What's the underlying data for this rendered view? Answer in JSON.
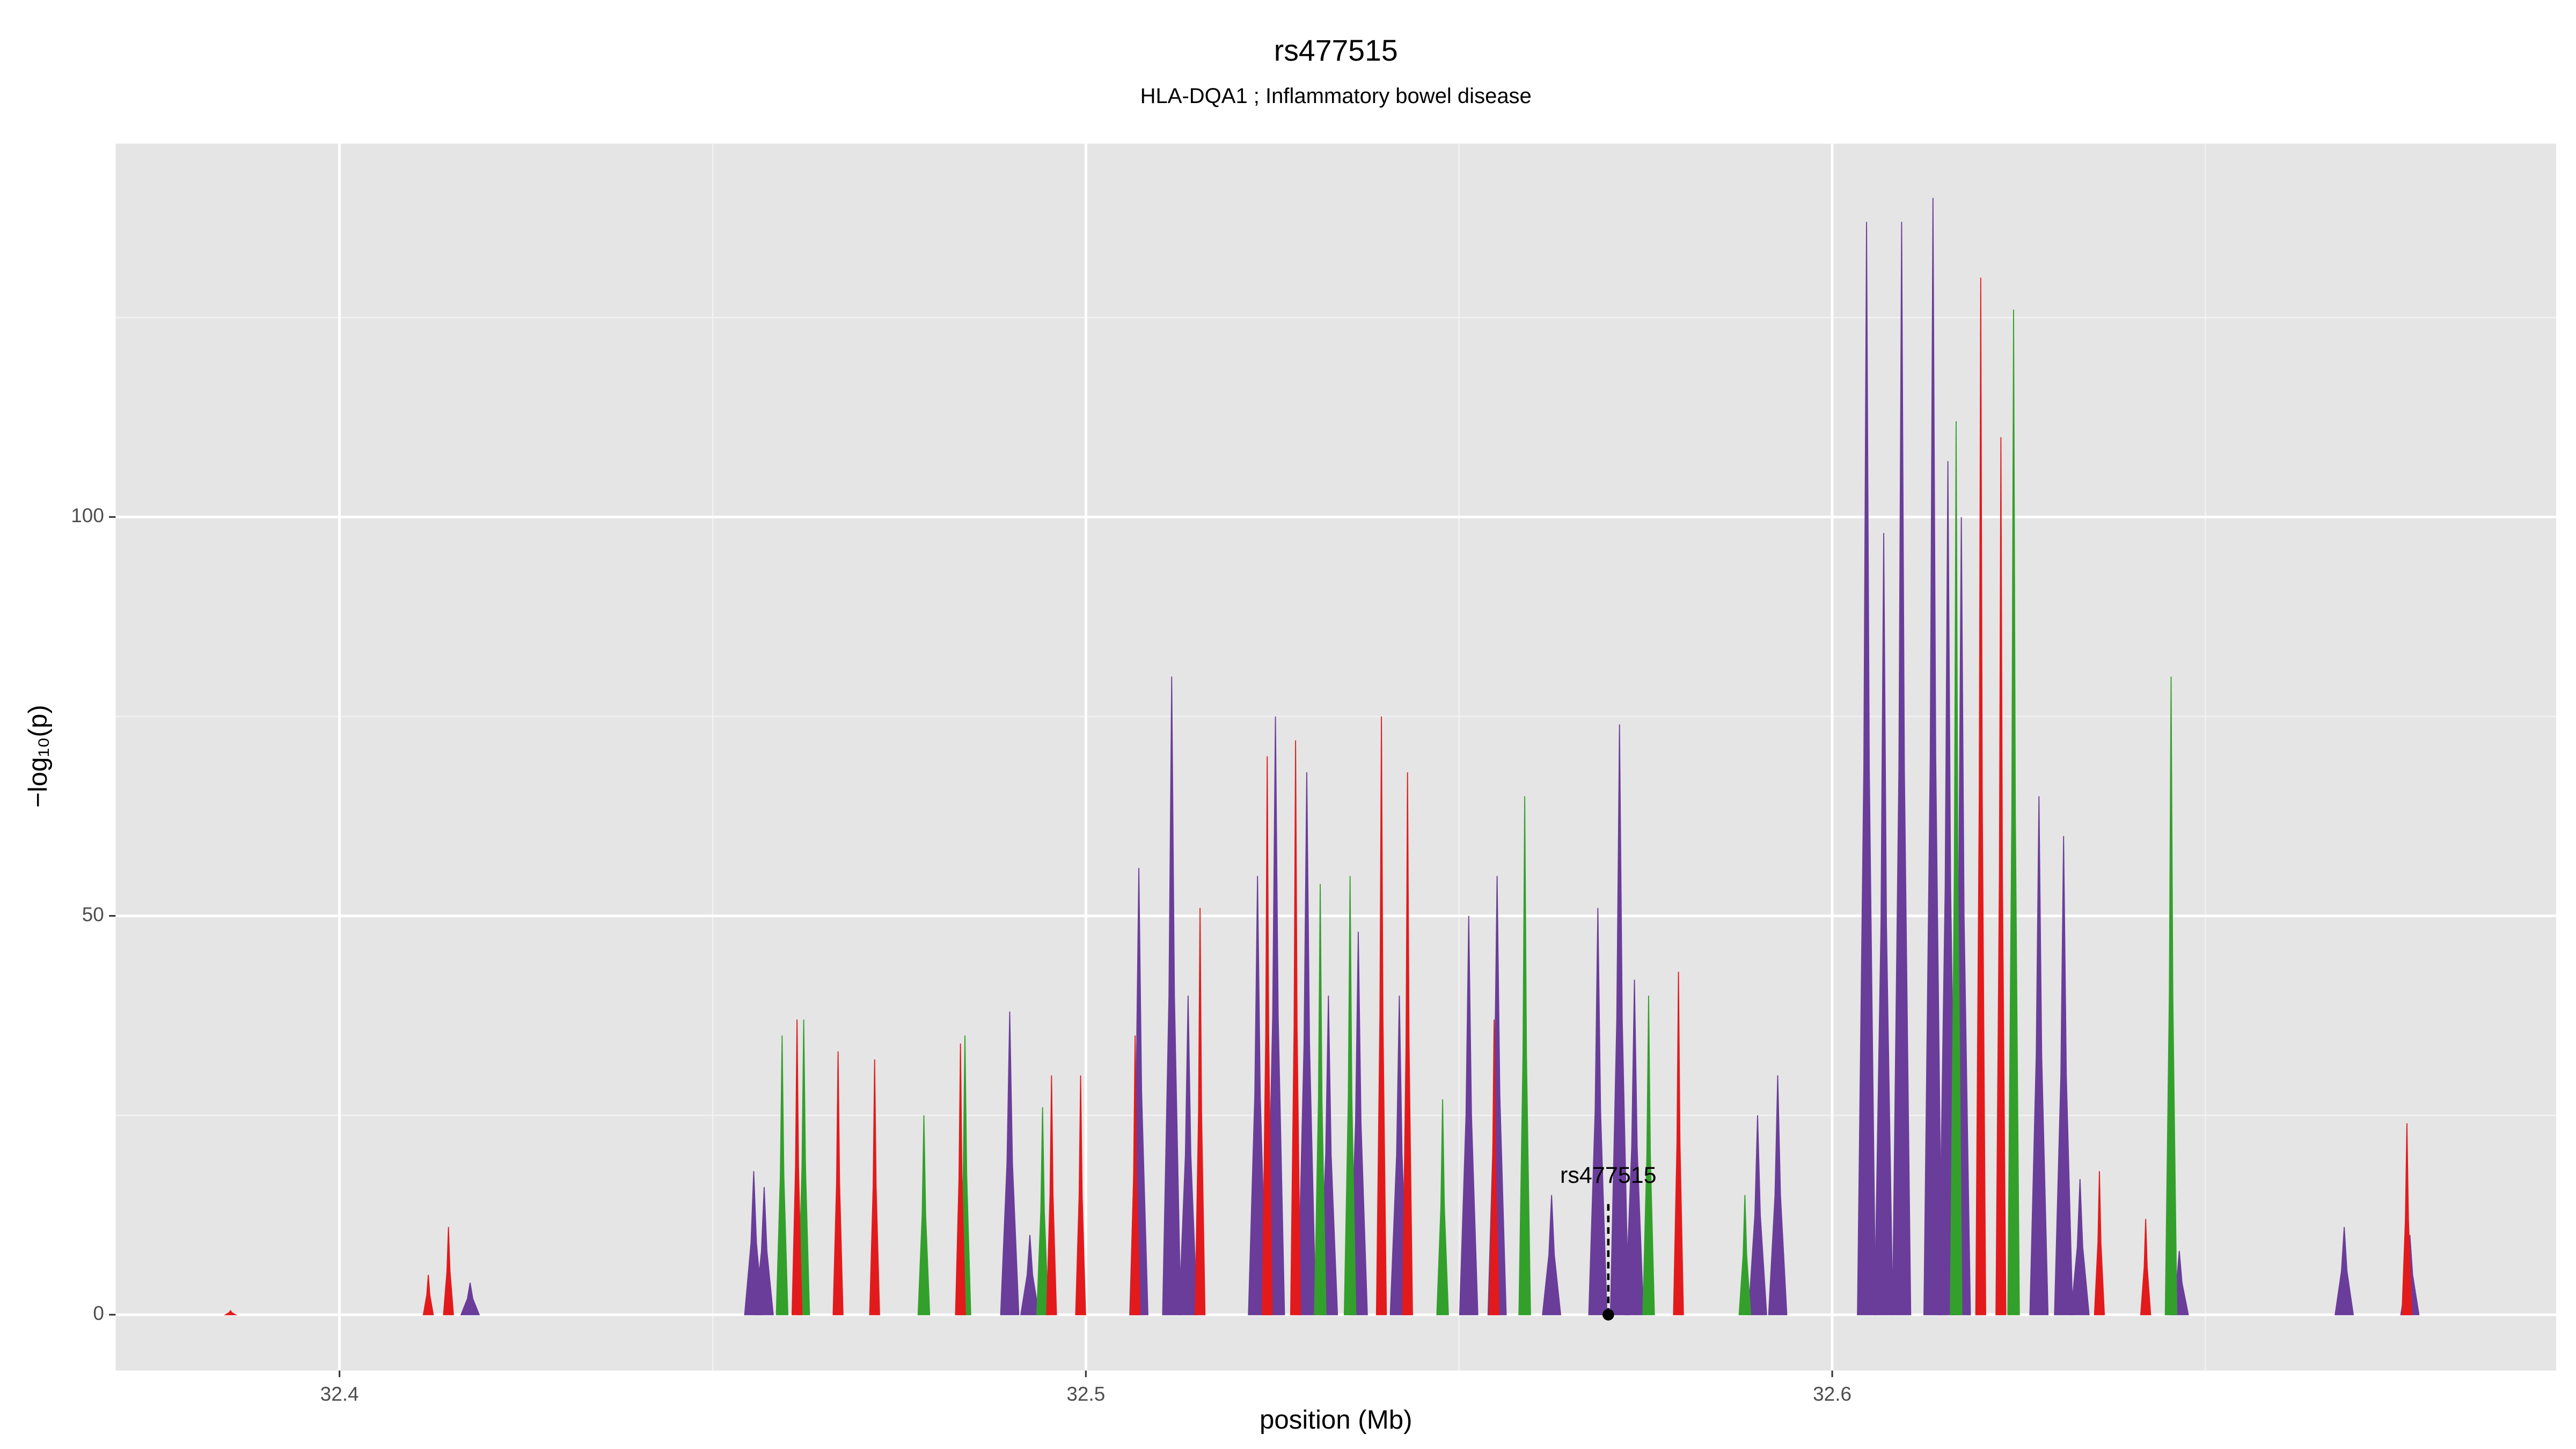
{
  "chart_data": {
    "type": "area",
    "title": "rs477515",
    "subtitle": "HLA-DQA1 ; Inflammatory bowel disease",
    "x_label": "position (Mb)",
    "y_label": "−log₁₀(p)",
    "xlim": [
      32.37,
      32.697
    ],
    "ylim": [
      -7,
      146.8
    ],
    "xticks": [
      32.4,
      32.5,
      32.6
    ],
    "yticks": [
      0,
      50,
      100
    ],
    "x_minor_grid": [
      32.45,
      32.55,
      32.65
    ],
    "y_minor_grid": [
      25,
      75,
      125
    ],
    "grid": true,
    "series": [
      {
        "color": "#6a3d9a",
        "x": [
          32.4175,
          32.4555,
          32.4569,
          32.4898,
          32.4925,
          32.5071,
          32.5115,
          32.5137,
          32.523,
          32.5254,
          32.5296,
          32.5325,
          32.5365,
          32.542,
          32.5513,
          32.5551,
          32.5624,
          32.5686,
          32.5715,
          32.5735,
          32.59,
          32.5927,
          32.6046,
          32.6069,
          32.6093,
          32.6135,
          32.6155,
          32.6173,
          32.6277,
          32.631,
          32.6332,
          32.6465,
          32.6686,
          32.6774
        ],
        "values": [
          4,
          18,
          16,
          38,
          10,
          56,
          80,
          40,
          55,
          75,
          68,
          40,
          48,
          40,
          50,
          55,
          15,
          51,
          74,
          42,
          25,
          30,
          137,
          98,
          137,
          140,
          107,
          100,
          65,
          60,
          17,
          8,
          11,
          10
        ]
      },
      {
        "color": "#33a02c",
        "x": [
          32.4593,
          32.4622,
          32.4783,
          32.4838,
          32.4942,
          32.5314,
          32.5354,
          32.5478,
          32.5588,
          32.5754,
          32.5883,
          32.6166,
          32.6243,
          32.6454
        ],
        "values": [
          35,
          37,
          25,
          35,
          26,
          54,
          55,
          27,
          65,
          40,
          15,
          112,
          126,
          80
        ]
      },
      {
        "color": "#e31a1c",
        "x": [
          32.3854,
          32.4119,
          32.4146,
          32.4613,
          32.4668,
          32.4717,
          32.4832,
          32.4954,
          32.4993,
          32.5066,
          32.5153,
          32.5243,
          32.5281,
          32.5396,
          32.5431,
          32.5547,
          32.5794,
          32.6199,
          32.6226,
          32.6358,
          32.642,
          32.677
        ],
        "values": [
          0.5,
          5,
          11,
          37,
          33,
          32,
          34,
          30,
          30,
          35,
          51,
          70,
          72,
          75,
          68,
          37,
          43,
          130,
          110,
          18,
          12,
          24
        ]
      }
    ],
    "annotation": {
      "label": "rs477515",
      "x": 32.57,
      "y": 14
    }
  }
}
